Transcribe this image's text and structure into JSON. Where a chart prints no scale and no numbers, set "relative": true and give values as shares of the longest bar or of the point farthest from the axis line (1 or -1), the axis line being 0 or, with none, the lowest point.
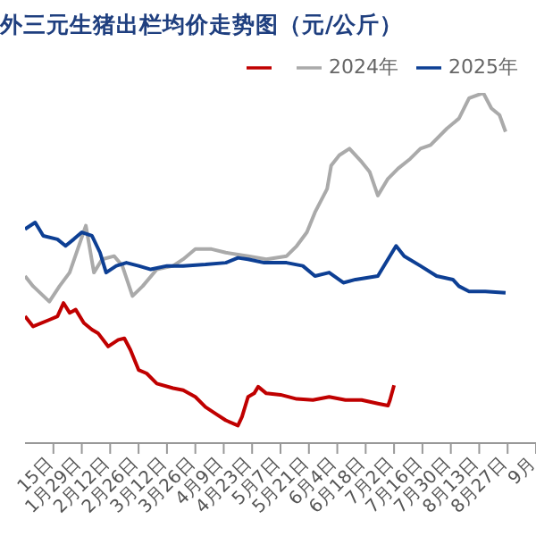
{
  "chart_data": {
    "type": "line",
    "title": "外三元生猪出栏均价走势图（元/公斤）",
    "relative": true,
    "legend": "top right",
    "grid": false,
    "marker": "none",
    "line_style": "solid",
    "xlim": [
      "--01-01",
      "--09-10"
    ],
    "xticks": [
      {
        "value": "--01-15",
        "label": "15日"
      },
      {
        "value": "--01-29",
        "label": "1月29日"
      },
      {
        "value": "--02-12",
        "label": "2月12日"
      },
      {
        "value": "--02-26",
        "label": "2月26日"
      },
      {
        "value": "--03-12",
        "label": "3月12日"
      },
      {
        "value": "--03-26",
        "label": "3月26日"
      },
      {
        "value": "--04-09",
        "label": "4月9日"
      },
      {
        "value": "--04-23",
        "label": "4月23日"
      },
      {
        "value": "--05-07",
        "label": "5月7日"
      },
      {
        "value": "--05-21",
        "label": "5月21日"
      },
      {
        "value": "--06-04",
        "label": "6月4日"
      },
      {
        "value": "--06-18",
        "label": "6月18日"
      },
      {
        "value": "--07-02",
        "label": "7月2日"
      },
      {
        "value": "--07-16",
        "label": "7月16日"
      },
      {
        "value": "--07-30",
        "label": "7月30日"
      },
      {
        "value": "--08-13",
        "label": "8月13日"
      },
      {
        "value": "--08-27",
        "label": "8月27日"
      },
      {
        "value": "--09-10",
        "label": "9月"
      }
    ],
    "series": [
      {
        "name": "2024年",
        "color": "#aaaaaa",
        "x": [
          "--01-01",
          "--01-05",
          "--01-13",
          "--01-18",
          "--01-23",
          "--01-31",
          "--02-04",
          "--02-08",
          "--02-14",
          "--02-18",
          "--02-23",
          "--02-28",
          "--03-07",
          "--03-15",
          "--03-20",
          "--03-26",
          "--04-03",
          "--04-10",
          "--04-21",
          "--04-30",
          "--05-10",
          "--05-15",
          "--05-20",
          "--05-24",
          "--05-30",
          "--06-01",
          "--06-05",
          "--06-10",
          "--06-16",
          "--06-20",
          "--06-24",
          "--06-29",
          "--07-04",
          "--07-10",
          "--07-15",
          "--07-20",
          "--07-28",
          "--08-03",
          "--08-08",
          "--08-15",
          "--08-19",
          "--08-23",
          "--08-26"
        ],
        "values": [
          0.477,
          0.448,
          0.404,
          0.448,
          0.487,
          0.621,
          0.487,
          0.525,
          0.534,
          0.506,
          0.42,
          0.448,
          0.496,
          0.506,
          0.525,
          0.554,
          0.554,
          0.544,
          0.534,
          0.525,
          0.534,
          0.563,
          0.602,
          0.659,
          0.726,
          0.793,
          0.822,
          0.841,
          0.803,
          0.774,
          0.707,
          0.755,
          0.784,
          0.812,
          0.841,
          0.851,
          0.898,
          0.927,
          0.985,
          1.0,
          0.956,
          0.937,
          0.889
        ]
      },
      {
        "name": "2025年",
        "color": "#0d3f94",
        "x": [
          "--01-01",
          "--01-06",
          "--01-10",
          "--01-17",
          "--01-21",
          "--01-25",
          "--01-29",
          "--02-03",
          "--02-07",
          "--02-10",
          "--02-15",
          "--02-20",
          "--02-26",
          "--03-04",
          "--03-12",
          "--03-20",
          "--03-31",
          "--04-10",
          "--04-16",
          "--04-21",
          "--04-29",
          "--05-10",
          "--05-18",
          "--05-24",
          "--05-31",
          "--06-07",
          "--06-13",
          "--06-24",
          "--06-29",
          "--07-03",
          "--07-07",
          "--07-15",
          "--07-23",
          "--07-31",
          "--08-03",
          "--08-08",
          "--08-16",
          "--08-26"
        ],
        "values": [
          0.611,
          0.63,
          0.592,
          0.582,
          0.563,
          0.582,
          0.602,
          0.592,
          0.544,
          0.487,
          0.506,
          0.515,
          0.506,
          0.496,
          0.506,
          0.506,
          0.51,
          0.515,
          0.529,
          0.525,
          0.515,
          0.515,
          0.506,
          0.477,
          0.487,
          0.458,
          0.467,
          0.477,
          0.525,
          0.563,
          0.534,
          0.506,
          0.477,
          0.467,
          0.448,
          0.433,
          0.433,
          0.429
        ]
      },
      {
        "color": "#c00000",
        "x": [
          "--01-01",
          "--01-05",
          "--01-13",
          "--01-17",
          "--01-20",
          "--01-23",
          "--01-26",
          "--01-30",
          "--02-03",
          "--02-06",
          "--02-11",
          "--02-16",
          "--02-19",
          "--02-22",
          "--02-26",
          "--03-02",
          "--03-07",
          "--03-15",
          "--03-20",
          "--03-26",
          "--03-31",
          "--04-05",
          "--04-10",
          "--04-16",
          "--04-18",
          "--04-21",
          "--04-24",
          "--04-26",
          "--04-30",
          "--05-07",
          "--05-15",
          "--05-23",
          "--05-31",
          "--06-08",
          "--06-16",
          "--06-24",
          "--06-29",
          "--06-30",
          "--07-02"
        ],
        "values": [
          0.362,
          0.333,
          0.352,
          0.362,
          0.4,
          0.372,
          0.381,
          0.343,
          0.324,
          0.314,
          0.276,
          0.295,
          0.299,
          0.266,
          0.209,
          0.199,
          0.17,
          0.157,
          0.151,
          0.132,
          0.103,
          0.084,
          0.065,
          0.05,
          0.075,
          0.132,
          0.142,
          0.161,
          0.142,
          0.138,
          0.126,
          0.123,
          0.132,
          0.123,
          0.123,
          0.113,
          0.107,
          0.123,
          0.165
        ]
      }
    ]
  }
}
